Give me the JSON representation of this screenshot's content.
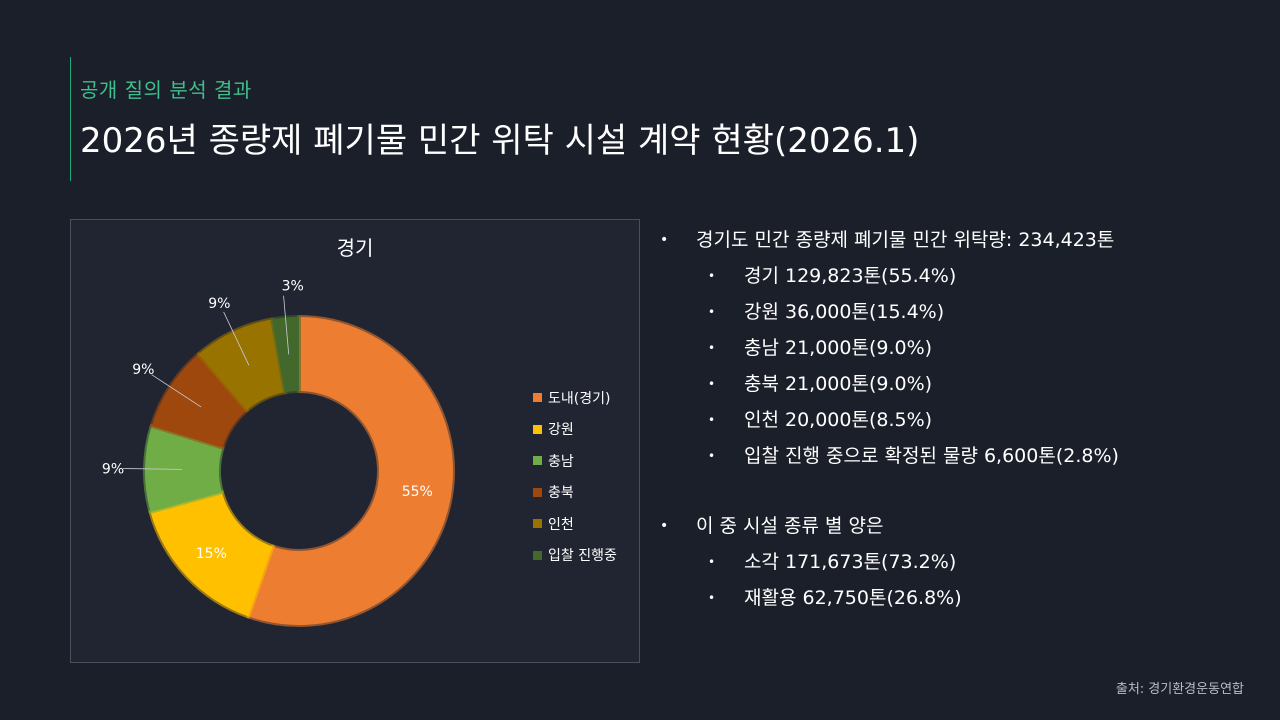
{
  "header": {
    "subtitle": "공개 질의 분석 결과",
    "title": "2026년 종량제 폐기물 민간 위탁 시설 계약 현황(2026.1)"
  },
  "chart_data": {
    "type": "pie",
    "donut": true,
    "title": "경기",
    "categories": [
      "도내(경기)",
      "강원",
      "충남",
      "충북",
      "인천",
      "입찰 진행중"
    ],
    "values": [
      55.4,
      15.4,
      9.0,
      9.0,
      8.5,
      2.8
    ],
    "data_labels": [
      "55%",
      "15%",
      "9%",
      "9%",
      "9%",
      "3%"
    ],
    "colors": [
      "#ed7d31",
      "#ffc000",
      "#70ad47",
      "#9e480e",
      "#997300",
      "#43682b"
    ],
    "legend_position": "right"
  },
  "info": {
    "group1": {
      "heading": "경기도 민간 종량제 폐기물 민간 위탁량: 234,423톤",
      "items": [
        "경기 129,823톤(55.4%)",
        "강원 36,000톤(15.4%)",
        "충남 21,000톤(9.0%)",
        "충북 21,000톤(9.0%)",
        "인천 20,000톤(8.5%)",
        "입찰 진행 중으로 확정된 물량 6,600톤(2.8%)"
      ]
    },
    "group2": {
      "heading": "이 중 시설 종류 별 양은",
      "items": [
        "소각 171,673톤(73.2%)",
        "재활용 62,750톤(26.8%)"
      ]
    }
  },
  "source": "출처: 경기환경운동연합"
}
